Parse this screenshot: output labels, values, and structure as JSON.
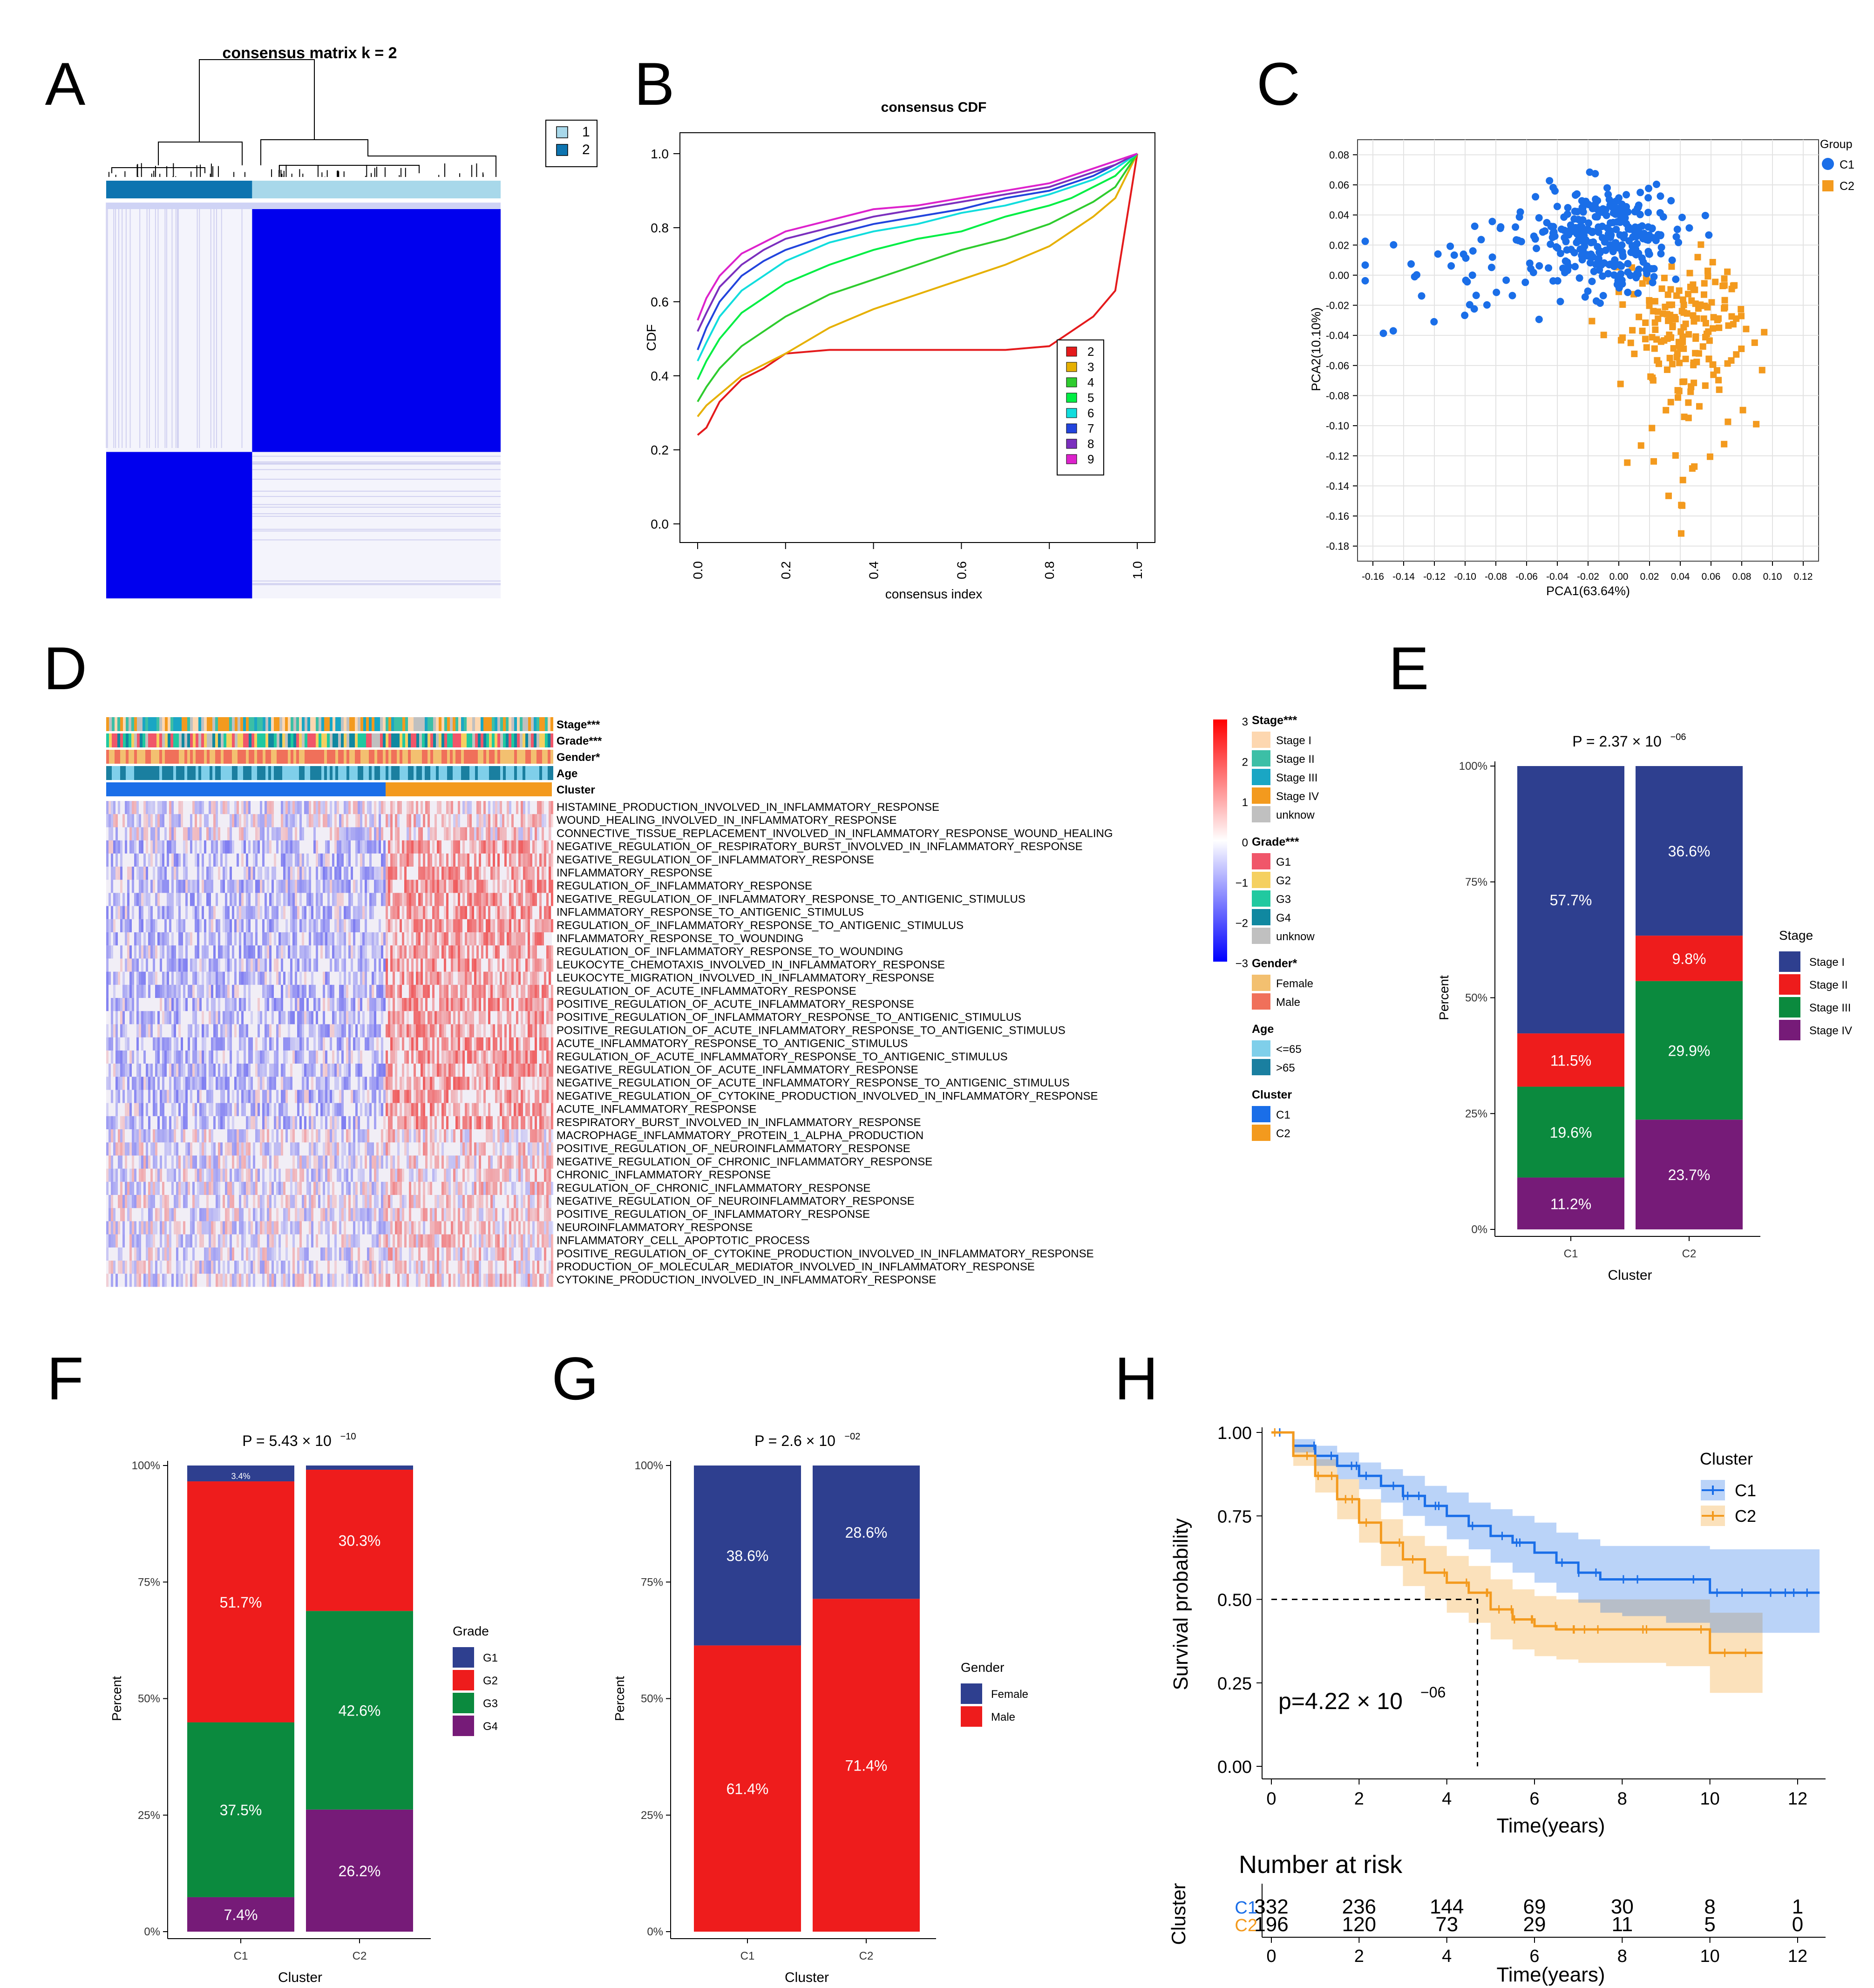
{
  "colors": {
    "blue_hm": "#0000ee",
    "light_hm": "#dcdcf5",
    "c1": "#1a6ee8",
    "c2": "#f39a1e",
    "stage1": "#2e3f8f",
    "stage2": "#ee1c1c",
    "stage3": "#0b8a3e",
    "stage4": "#761b78",
    "g1": "#2e3f8f",
    "g2": "#ee1c1c",
    "g3": "#0b8a3e",
    "g4": "#761b78",
    "female": "#2e3f8f",
    "male": "#ee1c1c"
  },
  "panel_labels": [
    "A",
    "B",
    "C",
    "D",
    "E",
    "F",
    "G",
    "H"
  ],
  "chart_data": [
    {
      "id": "A",
      "type": "heatmap",
      "title": "consensus matrix k = 2",
      "legend": [
        {
          "label": "1",
          "color": "#a8d8ea"
        },
        {
          "label": "2",
          "color": "#0d74b0"
        }
      ],
      "clusters": [
        {
          "name": "2",
          "fraction": 0.37
        },
        {
          "name": "1",
          "fraction": 0.63
        }
      ]
    },
    {
      "id": "B",
      "type": "line",
      "title": "consensus CDF",
      "xlabel": "consensus index",
      "ylabel": "CDF",
      "xlim": [
        0,
        1
      ],
      "ylim": [
        0,
        1
      ],
      "xticks": [
        "0.0",
        "0.2",
        "0.4",
        "0.6",
        "0.8",
        "1.0"
      ],
      "yticks": [
        "0.0",
        "0.2",
        "0.4",
        "0.6",
        "0.8",
        "1.0"
      ],
      "x": [
        0,
        0.02,
        0.05,
        0.1,
        0.15,
        0.2,
        0.3,
        0.4,
        0.5,
        0.6,
        0.7,
        0.8,
        0.85,
        0.9,
        0.95,
        1.0
      ],
      "series": [
        {
          "name": "2",
          "color": "#e41a1c",
          "values": [
            0.24,
            0.26,
            0.33,
            0.39,
            0.42,
            0.46,
            0.47,
            0.47,
            0.47,
            0.47,
            0.47,
            0.48,
            0.52,
            0.56,
            0.63,
            1.0
          ]
        },
        {
          "name": "3",
          "color": "#e6b000",
          "values": [
            0.29,
            0.32,
            0.35,
            0.4,
            0.43,
            0.46,
            0.53,
            0.58,
            0.62,
            0.66,
            0.7,
            0.75,
            0.79,
            0.83,
            0.88,
            1.0
          ]
        },
        {
          "name": "4",
          "color": "#2ecc2e",
          "values": [
            0.33,
            0.37,
            0.42,
            0.48,
            0.52,
            0.56,
            0.62,
            0.66,
            0.7,
            0.74,
            0.77,
            0.81,
            0.84,
            0.87,
            0.91,
            1.0
          ]
        },
        {
          "name": "5",
          "color": "#00ee44",
          "values": [
            0.39,
            0.44,
            0.5,
            0.57,
            0.61,
            0.65,
            0.7,
            0.74,
            0.77,
            0.79,
            0.83,
            0.86,
            0.88,
            0.91,
            0.94,
            1.0
          ]
        },
        {
          "name": "6",
          "color": "#11dddd",
          "values": [
            0.44,
            0.49,
            0.56,
            0.63,
            0.67,
            0.71,
            0.76,
            0.79,
            0.81,
            0.84,
            0.86,
            0.89,
            0.91,
            0.93,
            0.96,
            1.0
          ]
        },
        {
          "name": "7",
          "color": "#2244dd",
          "values": [
            0.47,
            0.53,
            0.6,
            0.67,
            0.71,
            0.74,
            0.78,
            0.81,
            0.83,
            0.85,
            0.88,
            0.9,
            0.92,
            0.94,
            0.97,
            1.0
          ]
        },
        {
          "name": "8",
          "color": "#7b2fbe",
          "values": [
            0.52,
            0.57,
            0.64,
            0.7,
            0.74,
            0.77,
            0.8,
            0.83,
            0.85,
            0.87,
            0.89,
            0.91,
            0.93,
            0.95,
            0.97,
            1.0
          ]
        },
        {
          "name": "9",
          "color": "#dd22cc",
          "values": [
            0.55,
            0.61,
            0.67,
            0.73,
            0.76,
            0.79,
            0.82,
            0.85,
            0.86,
            0.88,
            0.9,
            0.92,
            0.94,
            0.96,
            0.98,
            1.0
          ]
        }
      ]
    },
    {
      "id": "C",
      "type": "scatter",
      "xlabel": "PCA1(63.64%)",
      "ylabel": "PCA2(10.10%)",
      "xlim": [
        -0.17,
        0.13
      ],
      "ylim": [
        -0.19,
        0.09
      ],
      "xticks": [
        "-0.16",
        "-0.14",
        "-0.12",
        "-0.10",
        "-0.08",
        "-0.06",
        "-0.04",
        "-0.02",
        "0.00",
        "0.02",
        "0.04",
        "0.06",
        "0.08",
        "0.10",
        "0.12"
      ],
      "yticks": [
        "0.08",
        "0.06",
        "0.04",
        "0.02",
        "0.00",
        "-0.02",
        "-0.04",
        "-0.06",
        "-0.08",
        "-0.10",
        "-0.12",
        "-0.14",
        "-0.16",
        "-0.18"
      ],
      "legend_title": "Group",
      "groups": [
        {
          "name": "C1",
          "color": "#1a6ee8",
          "shape": "circle",
          "n": 332,
          "center": [
            -0.01,
            0.025
          ],
          "spread": [
            0.045,
            0.03
          ]
        },
        {
          "name": "C2",
          "color": "#f39a1e",
          "shape": "square",
          "n": 196,
          "center": [
            0.04,
            -0.035
          ],
          "spread": [
            0.04,
            0.045
          ]
        }
      ]
    },
    {
      "id": "D",
      "type": "heatmap",
      "annotation_rows": [
        "Stage***",
        "Grade***",
        "Gender*",
        "Age",
        "Cluster"
      ],
      "pathways": [
        "HISTAMINE_PRODUCTION_INVOLVED_IN_INFLAMMATORY_RESPONSE",
        "WOUND_HEALING_INVOLVED_IN_INFLAMMATORY_RESPONSE",
        "CONNECTIVE_TISSUE_REPLACEMENT_INVOLVED_IN_INFLAMMATORY_RESPONSE_WOUND_HEALING",
        "NEGATIVE_REGULATION_OF_RESPIRATORY_BURST_INVOLVED_IN_INFLAMMATORY_RESPONSE",
        "NEGATIVE_REGULATION_OF_INFLAMMATORY_RESPONSE",
        "INFLAMMATORY_RESPONSE",
        "REGULATION_OF_INFLAMMATORY_RESPONSE",
        "NEGATIVE_REGULATION_OF_INFLAMMATORY_RESPONSE_TO_ANTIGENIC_STIMULUS",
        "INFLAMMATORY_RESPONSE_TO_ANTIGENIC_STIMULUS",
        "REGULATION_OF_INFLAMMATORY_RESPONSE_TO_ANTIGENIC_STIMULUS",
        "INFLAMMATORY_RESPONSE_TO_WOUNDING",
        "REGULATION_OF_INFLAMMATORY_RESPONSE_TO_WOUNDING",
        "LEUKOCYTE_CHEMOTAXIS_INVOLVED_IN_INFLAMMATORY_RESPONSE",
        "LEUKOCYTE_MIGRATION_INVOLVED_IN_INFLAMMATORY_RESPONSE",
        "REGULATION_OF_ACUTE_INFLAMMATORY_RESPONSE",
        "POSITIVE_REGULATION_OF_ACUTE_INFLAMMATORY_RESPONSE",
        "POSITIVE_REGULATION_OF_INFLAMMATORY_RESPONSE_TO_ANTIGENIC_STIMULUS",
        "POSITIVE_REGULATION_OF_ACUTE_INFLAMMATORY_RESPONSE_TO_ANTIGENIC_STIMULUS",
        "ACUTE_INFLAMMATORY_RESPONSE_TO_ANTIGENIC_STIMULUS",
        "REGULATION_OF_ACUTE_INFLAMMATORY_RESPONSE_TO_ANTIGENIC_STIMULUS",
        "NEGATIVE_REGULATION_OF_ACUTE_INFLAMMATORY_RESPONSE",
        "NEGATIVE_REGULATION_OF_ACUTE_INFLAMMATORY_RESPONSE_TO_ANTIGENIC_STIMULUS",
        "NEGATIVE_REGULATION_OF_CYTOKINE_PRODUCTION_INVOLVED_IN_INFLAMMATORY_RESPONSE",
        "ACUTE_INFLAMMATORY_RESPONSE",
        "RESPIRATORY_BURST_INVOLVED_IN_INFLAMMATORY_RESPONSE",
        "MACROPHAGE_INFLAMMATORY_PROTEIN_1_ALPHA_PRODUCTION",
        "POSITIVE_REGULATION_OF_NEUROINFLAMMATORY_RESPONSE",
        "NEGATIVE_REGULATION_OF_CHRONIC_INFLAMMATORY_RESPONSE",
        "CHRONIC_INFLAMMATORY_RESPONSE",
        "REGULATION_OF_CHRONIC_INFLAMMATORY_RESPONSE",
        "NEGATIVE_REGULATION_OF_NEUROINFLAMMATORY_RESPONSE",
        "POSITIVE_REGULATION_OF_INFLAMMATORY_RESPONSE",
        "NEUROINFLAMMATORY_RESPONSE",
        "INFLAMMATORY_CELL_APOPTOTIC_PROCESS",
        "POSITIVE_REGULATION_OF_CYTOKINE_PRODUCTION_INVOLVED_IN_INFLAMMATORY_RESPONSE",
        "PRODUCTION_OF_MOLECULAR_MEDIATOR_INVOLVED_IN_INFLAMMATORY_RESPONSE",
        "CYTOKINE_PRODUCTION_INVOLVED_IN_INFLAMMATORY_RESPONSE"
      ],
      "color_scale": {
        "ticks": [
          "3",
          "2",
          "1",
          "0",
          "−1",
          "−2",
          "−3"
        ]
      },
      "legends": [
        {
          "title": "Stage***",
          "items": [
            {
              "label": "Stage I",
              "color": "#fdd7b0"
            },
            {
              "label": "Stage II",
              "color": "#3cbfa6"
            },
            {
              "label": "Stage III",
              "color": "#1aa6c4"
            },
            {
              "label": "Stage IV",
              "color": "#f39a1e"
            },
            {
              "label": "unknow",
              "color": "#c0c0c0"
            }
          ]
        },
        {
          "title": "Grade***",
          "items": [
            {
              "label": "G1",
              "color": "#f0566a"
            },
            {
              "label": "G2",
              "color": "#f5d060"
            },
            {
              "label": "G3",
              "color": "#20c9a0"
            },
            {
              "label": "G4",
              "color": "#1088a0"
            },
            {
              "label": "unknow",
              "color": "#c0c0c0"
            }
          ]
        },
        {
          "title": "Gender*",
          "items": [
            {
              "label": "Female",
              "color": "#f3c070"
            },
            {
              "label": "Male",
              "color": "#f0705a"
            }
          ]
        },
        {
          "title": "Age",
          "items": [
            {
              "label": "<=65",
              "color": "#7fcfea"
            },
            {
              "label": ">65",
              "color": "#1a7fa0"
            }
          ]
        },
        {
          "title": "Cluster",
          "items": [
            {
              "label": "C1",
              "color": "#1a6ee8"
            },
            {
              "label": "C2",
              "color": "#f39a1e"
            }
          ]
        }
      ]
    },
    {
      "id": "E",
      "type": "bar",
      "title": "P = 2.37 × 10",
      "title_exp": "−06",
      "xlabel": "Cluster",
      "ylabel": "Percent",
      "categories": [
        "C1",
        "C2"
      ],
      "yticks": [
        "0%",
        "25%",
        "50%",
        "75%",
        "100%"
      ],
      "legend_title": "Stage",
      "series": [
        {
          "name": "Stage IV",
          "color": "#761b78",
          "values": [
            11.2,
            23.7
          ],
          "labels": [
            "11.2%",
            "23.7%"
          ]
        },
        {
          "name": "Stage III",
          "color": "#0b8a3e",
          "values": [
            19.6,
            29.9
          ],
          "labels": [
            "19.6%",
            "29.9%"
          ]
        },
        {
          "name": "Stage II",
          "color": "#ee1c1c",
          "values": [
            11.5,
            9.8
          ],
          "labels": [
            "11.5%",
            "9.8%"
          ]
        },
        {
          "name": "Stage I",
          "color": "#2e3f8f",
          "values": [
            57.7,
            36.6
          ],
          "labels": [
            "57.7%",
            "36.6%"
          ]
        }
      ]
    },
    {
      "id": "F",
      "type": "bar",
      "title": "P = 5.43 × 10",
      "title_exp": "−10",
      "xlabel": "Cluster",
      "ylabel": "Percent",
      "categories": [
        "C1",
        "C2"
      ],
      "yticks": [
        "0%",
        "25%",
        "50%",
        "75%",
        "100%"
      ],
      "legend_title": "Grade",
      "series": [
        {
          "name": "G4",
          "color": "#761b78",
          "values": [
            7.4,
            26.2
          ],
          "labels": [
            "7.4%",
            "26.2%"
          ]
        },
        {
          "name": "G3",
          "color": "#0b8a3e",
          "values": [
            37.5,
            42.6
          ],
          "labels": [
            "37.5%",
            "42.6%"
          ]
        },
        {
          "name": "G2",
          "color": "#ee1c1c",
          "values": [
            51.7,
            30.3
          ],
          "labels": [
            "51.7%",
            "30.3%"
          ]
        },
        {
          "name": "G1",
          "color": "#2e3f8f",
          "values": [
            3.4,
            0.9
          ],
          "labels": [
            "3.4%",
            ""
          ]
        }
      ]
    },
    {
      "id": "G",
      "type": "bar",
      "title": "P = 2.6 × 10",
      "title_exp": "−02",
      "xlabel": "Cluster",
      "ylabel": "Percent",
      "categories": [
        "C1",
        "C2"
      ],
      "yticks": [
        "0%",
        "25%",
        "50%",
        "75%",
        "100%"
      ],
      "legend_title": "Gender",
      "series": [
        {
          "name": "Male",
          "color": "#ee1c1c",
          "values": [
            61.4,
            71.4
          ],
          "labels": [
            "61.4%",
            "71.4%"
          ]
        },
        {
          "name": "Female",
          "color": "#2e3f8f",
          "values": [
            38.6,
            28.6
          ],
          "labels": [
            "38.6%",
            "28.6%"
          ]
        }
      ]
    },
    {
      "id": "H",
      "type": "line",
      "xlabel": "Time(years)",
      "ylabel": "Survival probability",
      "xlim": [
        0,
        12.7
      ],
      "ylim": [
        0,
        1
      ],
      "xticks": [
        "0",
        "2",
        "4",
        "6",
        "8",
        "10",
        "12"
      ],
      "yticks": [
        "0.00",
        "0.25",
        "0.50",
        "0.75",
        "1.00"
      ],
      "pvalue": "p=4.22 × 10",
      "pvalue_exp": "−06",
      "legend_title": "Cluster",
      "series": [
        {
          "name": "C1",
          "color": "#1a6ee8",
          "x": [
            0,
            0.5,
            1,
            1.5,
            2,
            2.5,
            3,
            3.5,
            4,
            4.5,
            5,
            5.5,
            6,
            6.5,
            7,
            7.5,
            8,
            9,
            10,
            11,
            12,
            12.5
          ],
          "values": [
            1.0,
            0.96,
            0.93,
            0.9,
            0.87,
            0.84,
            0.81,
            0.78,
            0.75,
            0.72,
            0.69,
            0.67,
            0.64,
            0.61,
            0.58,
            0.56,
            0.56,
            0.56,
            0.52,
            0.52,
            0.52,
            0.52
          ],
          "lower": [
            1.0,
            0.94,
            0.9,
            0.86,
            0.83,
            0.79,
            0.75,
            0.72,
            0.68,
            0.65,
            0.61,
            0.58,
            0.55,
            0.52,
            0.49,
            0.46,
            0.45,
            0.43,
            0.4,
            0.4,
            0.4,
            0.4
          ],
          "upper": [
            1.0,
            0.98,
            0.96,
            0.94,
            0.91,
            0.89,
            0.87,
            0.84,
            0.82,
            0.79,
            0.77,
            0.75,
            0.73,
            0.7,
            0.68,
            0.66,
            0.66,
            0.66,
            0.65,
            0.65,
            0.65,
            0.65
          ]
        },
        {
          "name": "C2",
          "color": "#f39a1e",
          "x": [
            0,
            0.5,
            1,
            1.5,
            2,
            2.5,
            3,
            3.5,
            4,
            4.5,
            5,
            5.5,
            6,
            6.5,
            7,
            8,
            9,
            10,
            10.5,
            11.2
          ],
          "values": [
            1.0,
            0.93,
            0.87,
            0.8,
            0.73,
            0.67,
            0.62,
            0.58,
            0.55,
            0.52,
            0.47,
            0.44,
            0.42,
            0.41,
            0.41,
            0.41,
            0.41,
            0.34,
            0.34,
            0.34
          ],
          "lower": [
            1.0,
            0.9,
            0.82,
            0.74,
            0.67,
            0.6,
            0.54,
            0.5,
            0.46,
            0.43,
            0.38,
            0.35,
            0.33,
            0.32,
            0.31,
            0.31,
            0.3,
            0.22,
            0.22,
            0.22
          ],
          "upper": [
            1.0,
            0.96,
            0.92,
            0.86,
            0.8,
            0.74,
            0.69,
            0.66,
            0.63,
            0.6,
            0.56,
            0.53,
            0.51,
            0.5,
            0.5,
            0.5,
            0.5,
            0.46,
            0.46,
            0.46
          ]
        }
      ],
      "median": {
        "y": 0.5,
        "x": 4.7
      },
      "risk_table": {
        "title": "Number at risk",
        "ylabel": "Cluster",
        "xlabel": "Time(years)",
        "times": [
          "0",
          "2",
          "4",
          "6",
          "8",
          "10",
          "12"
        ],
        "rows": [
          {
            "name": "C1",
            "color": "#1a6ee8",
            "values": [
              "332",
              "236",
              "144",
              "69",
              "30",
              "8",
              "1"
            ]
          },
          {
            "name": "C2",
            "color": "#f39a1e",
            "values": [
              "196",
              "120",
              "73",
              "29",
              "11",
              "5",
              "0"
            ]
          }
        ]
      }
    }
  ]
}
